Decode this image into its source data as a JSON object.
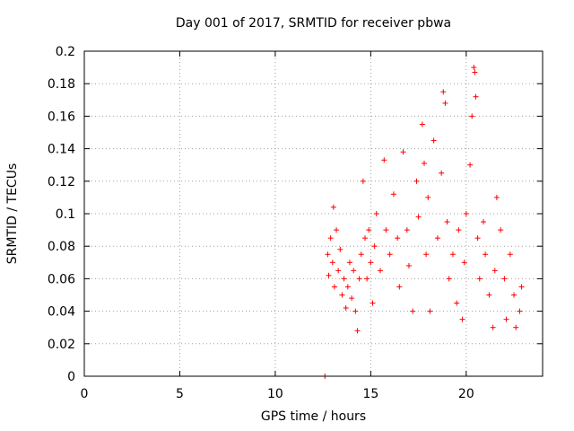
{
  "chart_data": {
    "type": "scatter",
    "title": "Day 001 of 2017, SRMTID for receiver pbwa",
    "xlabel": "GPS time / hours",
    "ylabel": "SRMTID / TECUs",
    "xlim": [
      0,
      24
    ],
    "ylim": [
      0,
      0.2
    ],
    "x_ticks": [
      0,
      5,
      10,
      15,
      20
    ],
    "y_ticks": [
      0,
      0.02,
      0.04,
      0.06,
      0.08,
      0.1,
      0.12,
      0.14,
      0.16,
      0.18,
      0.2
    ],
    "grid": true,
    "marker": "+",
    "color": "#ff0000",
    "note_points": [
      {
        "x": 12.6,
        "y": 0.0
      },
      {
        "x": 12.75,
        "y": 0.075
      },
      {
        "x": 12.8,
        "y": 0.062
      },
      {
        "x": 12.9,
        "y": 0.085
      },
      {
        "x": 13.0,
        "y": 0.07
      },
      {
        "x": 13.05,
        "y": 0.104
      },
      {
        "x": 13.1,
        "y": 0.055
      },
      {
        "x": 13.2,
        "y": 0.09
      },
      {
        "x": 13.3,
        "y": 0.065
      },
      {
        "x": 13.4,
        "y": 0.078
      },
      {
        "x": 13.5,
        "y": 0.05
      },
      {
        "x": 13.6,
        "y": 0.06
      },
      {
        "x": 13.7,
        "y": 0.042
      },
      {
        "x": 13.8,
        "y": 0.055
      },
      {
        "x": 13.9,
        "y": 0.07
      },
      {
        "x": 14.0,
        "y": 0.048
      },
      {
        "x": 14.1,
        "y": 0.065
      },
      {
        "x": 14.2,
        "y": 0.04
      },
      {
        "x": 14.3,
        "y": 0.028
      },
      {
        "x": 14.4,
        "y": 0.06
      },
      {
        "x": 14.5,
        "y": 0.075
      },
      {
        "x": 14.6,
        "y": 0.12
      },
      {
        "x": 14.7,
        "y": 0.085
      },
      {
        "x": 14.8,
        "y": 0.06
      },
      {
        "x": 14.9,
        "y": 0.09
      },
      {
        "x": 15.0,
        "y": 0.07
      },
      {
        "x": 15.1,
        "y": 0.045
      },
      {
        "x": 15.2,
        "y": 0.08
      },
      {
        "x": 15.3,
        "y": 0.1
      },
      {
        "x": 15.5,
        "y": 0.065
      },
      {
        "x": 15.7,
        "y": 0.133
      },
      {
        "x": 15.8,
        "y": 0.09
      },
      {
        "x": 16.0,
        "y": 0.075
      },
      {
        "x": 16.2,
        "y": 0.112
      },
      {
        "x": 16.4,
        "y": 0.085
      },
      {
        "x": 16.5,
        "y": 0.055
      },
      {
        "x": 16.7,
        "y": 0.138
      },
      {
        "x": 16.9,
        "y": 0.09
      },
      {
        "x": 17.0,
        "y": 0.068
      },
      {
        "x": 17.2,
        "y": 0.04
      },
      {
        "x": 17.4,
        "y": 0.12
      },
      {
        "x": 17.5,
        "y": 0.098
      },
      {
        "x": 17.7,
        "y": 0.155
      },
      {
        "x": 17.8,
        "y": 0.131
      },
      {
        "x": 17.9,
        "y": 0.075
      },
      {
        "x": 18.0,
        "y": 0.11
      },
      {
        "x": 18.1,
        "y": 0.04
      },
      {
        "x": 18.3,
        "y": 0.145
      },
      {
        "x": 18.5,
        "y": 0.085
      },
      {
        "x": 18.7,
        "y": 0.125
      },
      {
        "x": 18.8,
        "y": 0.175
      },
      {
        "x": 18.9,
        "y": 0.168
      },
      {
        "x": 19.0,
        "y": 0.095
      },
      {
        "x": 19.1,
        "y": 0.06
      },
      {
        "x": 19.3,
        "y": 0.075
      },
      {
        "x": 19.5,
        "y": 0.045
      },
      {
        "x": 19.6,
        "y": 0.09
      },
      {
        "x": 19.8,
        "y": 0.035
      },
      {
        "x": 19.9,
        "y": 0.07
      },
      {
        "x": 20.0,
        "y": 0.1
      },
      {
        "x": 20.2,
        "y": 0.13
      },
      {
        "x": 20.3,
        "y": 0.16
      },
      {
        "x": 20.4,
        "y": 0.19
      },
      {
        "x": 20.45,
        "y": 0.187
      },
      {
        "x": 20.5,
        "y": 0.172
      },
      {
        "x": 20.6,
        "y": 0.085
      },
      {
        "x": 20.7,
        "y": 0.06
      },
      {
        "x": 20.9,
        "y": 0.095
      },
      {
        "x": 21.0,
        "y": 0.075
      },
      {
        "x": 21.2,
        "y": 0.05
      },
      {
        "x": 21.4,
        "y": 0.03
      },
      {
        "x": 21.5,
        "y": 0.065
      },
      {
        "x": 21.6,
        "y": 0.11
      },
      {
        "x": 21.8,
        "y": 0.09
      },
      {
        "x": 22.0,
        "y": 0.06
      },
      {
        "x": 22.1,
        "y": 0.035
      },
      {
        "x": 22.3,
        "y": 0.075
      },
      {
        "x": 22.5,
        "y": 0.05
      },
      {
        "x": 22.6,
        "y": 0.03
      },
      {
        "x": 22.8,
        "y": 0.04
      },
      {
        "x": 22.9,
        "y": 0.055
      }
    ]
  }
}
